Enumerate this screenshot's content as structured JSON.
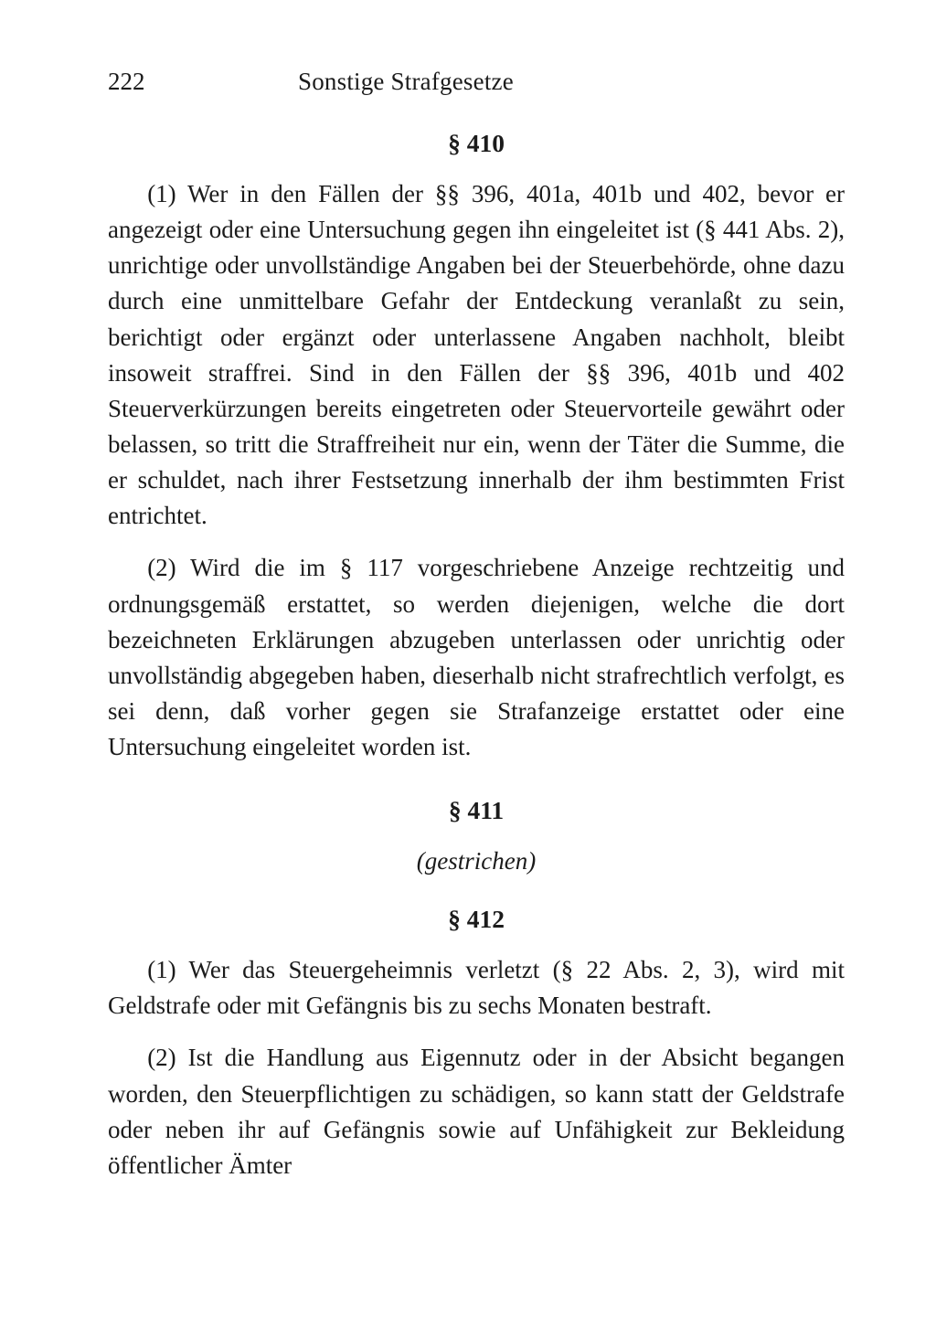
{
  "page": {
    "number": "222",
    "running_head": "Sonstige Strafgesetze",
    "background_color": "#ffffff",
    "text_color": "#1b1b1b",
    "body_fontsize_pt": 20,
    "heading_fontsize_pt": 20
  },
  "sections": {
    "s410": {
      "heading": "§ 410",
      "para1": "(1) Wer in den Fällen der §§ 396, 401a, 401b und 402, bevor er angezeigt oder eine Untersuchung gegen ihn eingeleitet ist (§ 441 Abs. 2), unrichtige oder unvollständige Angaben bei der Steuerbehörde, ohne dazu durch eine unmittelbare Gefahr der Entdeckung veranlaßt zu sein, berichtigt oder ergänzt oder unterlassene Angaben nachholt, bleibt insoweit straffrei. Sind in den Fällen der §§ 396, 401b und 402 Steuerverkürzungen bereits eingetreten oder Steuervorteile gewährt oder belassen, so tritt die Straffreiheit nur ein, wenn der Täter die Summe, die er schuldet, nach ihrer Festsetzung innerhalb der ihm bestimmten Frist entrichtet.",
      "para2": "(2) Wird die im § 117 vorgeschriebene Anzeige rechtzeitig und ordnungsgemäß erstattet, so werden diejenigen, welche die dort bezeichneten Erklärungen abzugeben unterlassen oder unrichtig oder unvollständig abgegeben haben, dieserhalb nicht strafrechtlich verfolgt, es sei denn, daß vorher gegen sie Strafanzeige erstattet oder eine Untersuchung eingeleitet worden ist."
    },
    "s411": {
      "heading": "§ 411",
      "note": "(gestrichen)"
    },
    "s412": {
      "heading": "§ 412",
      "para1": "(1) Wer das Steuergeheimnis verletzt (§ 22 Abs. 2, 3), wird mit Geldstrafe oder mit Gefängnis bis zu sechs Monaten bestraft.",
      "para2": "(2) Ist die Handlung aus Eigennutz oder in der Absicht begangen worden, den Steuerpflichtigen zu schädigen, so kann statt der Geldstrafe oder neben ihr auf Gefängnis sowie auf Unfähigkeit zur Bekleidung öffentlicher Ämter"
    }
  }
}
